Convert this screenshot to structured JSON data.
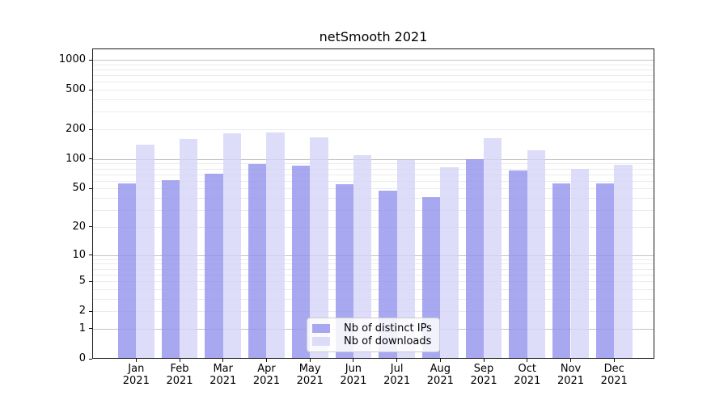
{
  "chart_data": {
    "type": "bar",
    "title": "netSmooth 2021",
    "categories": [
      "Jan",
      "Feb",
      "Mar",
      "Apr",
      "May",
      "Jun",
      "Jul",
      "Aug",
      "Sep",
      "Oct",
      "Nov",
      "Dec"
    ],
    "year_label": "2021",
    "series": [
      {
        "name": "Nb of distinct IPs",
        "color": "#9292ed",
        "opacity": 0.8,
        "values": [
          57,
          61,
          71,
          89,
          85,
          55,
          48,
          41,
          100,
          76,
          57,
          57
        ]
      },
      {
        "name": "Nb of downloads",
        "color": "#d4d4f7",
        "opacity": 0.8,
        "values": [
          140,
          160,
          183,
          186,
          167,
          110,
          97,
          83,
          162,
          123,
          79,
          88
        ]
      }
    ],
    "y_ticks": [
      0,
      1,
      2,
      5,
      10,
      20,
      50,
      100,
      200,
      500,
      1000
    ],
    "y_scale": "log1p",
    "ylim": [
      0,
      1300
    ],
    "xlabel": "",
    "ylabel": "",
    "grid": "both",
    "legend_position": "lower-center"
  }
}
